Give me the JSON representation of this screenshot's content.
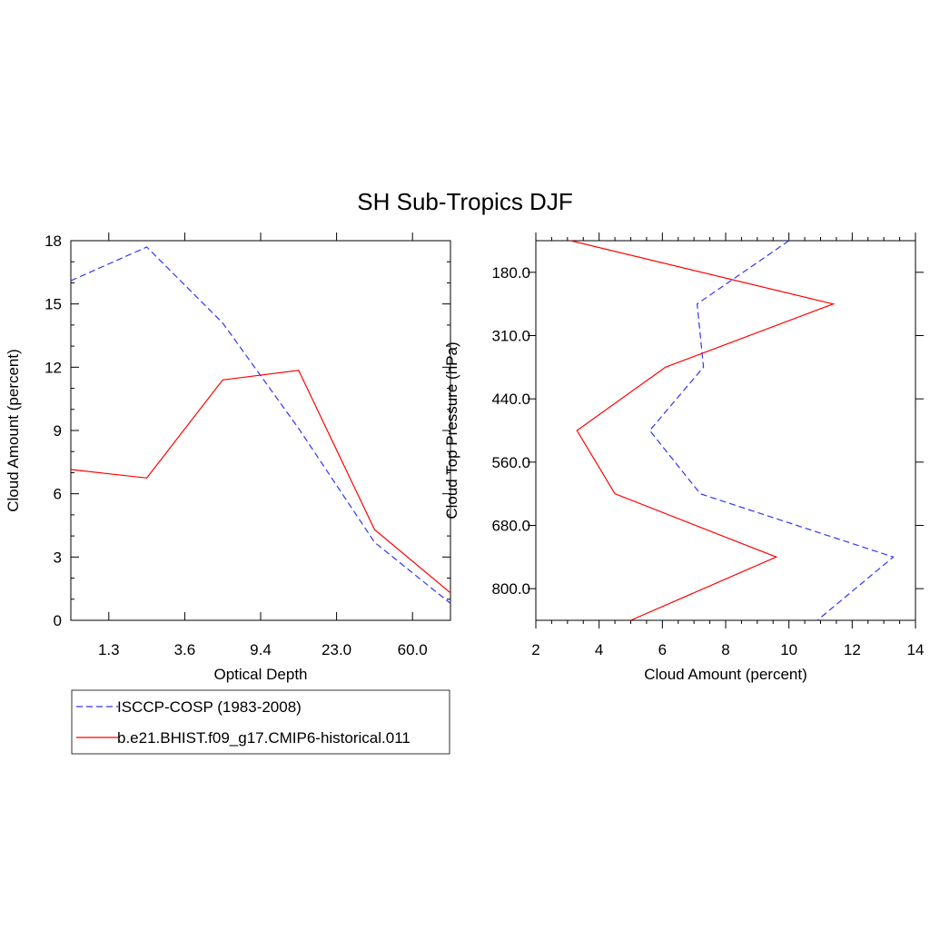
{
  "title": "SH Sub-Tropics DJF",
  "chart_data": [
    {
      "type": "line",
      "xlabel": "Optical Depth",
      "ylabel": "Cloud Amount (percent)",
      "x_tick_labels": [
        "1.3",
        "3.6",
        "9.4",
        "23.0",
        "60.0"
      ],
      "x_tick_positions": [
        1,
        3,
        5,
        7,
        9
      ],
      "xlim": [
        0,
        10
      ],
      "ylim": [
        0,
        18
      ],
      "y_ticks": [
        0,
        3,
        6,
        9,
        12,
        15,
        18
      ],
      "x": [
        0,
        2,
        4,
        6,
        8,
        10
      ],
      "series": [
        {
          "name": "ISCCP-COSP (1983-2008)",
          "color": "#3333ff",
          "dash": "dashed",
          "values": [
            16.1,
            17.7,
            14.1,
            9.1,
            3.7,
            0.8
          ]
        },
        {
          "name": "b.e21.BHIST.f09_g17.CMIP6-historical.011",
          "color": "#ff0000",
          "dash": "solid",
          "values": [
            7.15,
            6.75,
            11.4,
            11.85,
            4.3,
            1.3
          ]
        }
      ]
    },
    {
      "type": "line",
      "xlabel": "Cloud Amount (percent)",
      "ylabel": "Cloud Top Pressure (hPa)",
      "xlim": [
        2,
        14
      ],
      "x_ticks": [
        2,
        4,
        6,
        8,
        10,
        12,
        14
      ],
      "y_tick_labels": [
        "180.0",
        "310.0",
        "440.0",
        "560.0",
        "680.0",
        "800.0"
      ],
      "y_tick_positions": [
        1,
        3,
        5,
        7,
        9,
        11
      ],
      "ylim": [
        0,
        12
      ],
      "y": [
        0,
        2,
        4,
        6,
        8,
        10,
        12
      ],
      "series": [
        {
          "name": "ISCCP-COSP (1983-2008)",
          "color": "#3333ff",
          "dash": "dashed",
          "values": [
            10.0,
            7.1,
            7.3,
            5.6,
            7.2,
            13.3,
            10.9
          ]
        },
        {
          "name": "b.e21.BHIST.f09_g17.CMIP6-historical.011",
          "color": "#ff0000",
          "dash": "solid",
          "values": [
            3.1,
            11.4,
            6.1,
            3.3,
            4.5,
            9.6,
            5.0
          ]
        }
      ]
    }
  ],
  "legend": {
    "items": [
      {
        "label": "ISCCP-COSP (1983-2008)",
        "color": "#3333ff",
        "dash": "dashed"
      },
      {
        "label": "b.e21.BHIST.f09_g17.CMIP6-historical.011",
        "color": "#ff0000",
        "dash": "solid"
      }
    ]
  }
}
